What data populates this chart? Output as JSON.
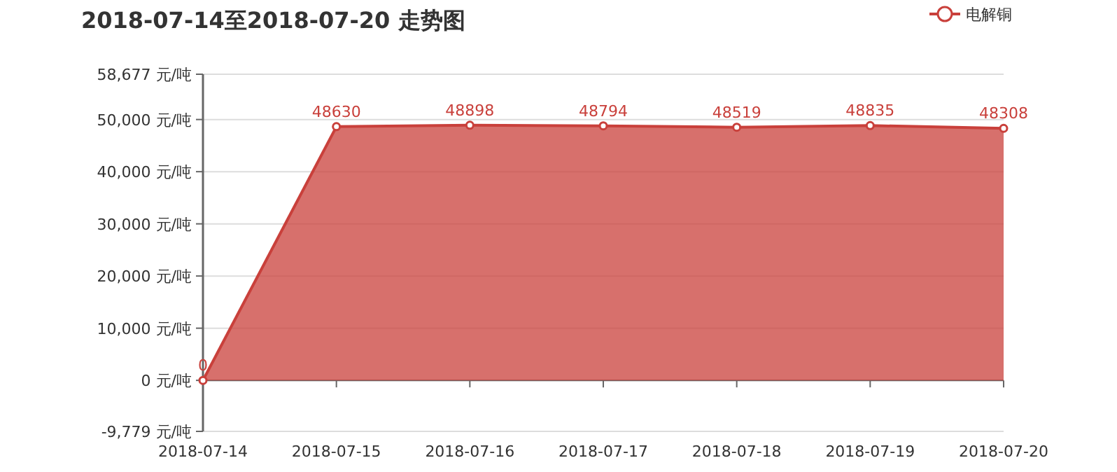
{
  "chart_data": {
    "type": "area",
    "title": "2018-07-14至2018-07-20 走势图",
    "categories": [
      "2018-07-14",
      "2018-07-15",
      "2018-07-16",
      "2018-07-17",
      "2018-07-18",
      "2018-07-19",
      "2018-07-20"
    ],
    "series": [
      {
        "name": "电解铜",
        "color": "#c9403b",
        "values": [
          0,
          48630,
          48898,
          48794,
          48519,
          48835,
          48308
        ]
      }
    ],
    "ylim": [
      -9779,
      58677
    ],
    "yticks": [
      {
        "value": -9779,
        "label": "-9,779 元/吨"
      },
      {
        "value": 0,
        "label": "0 元/吨"
      },
      {
        "value": 10000,
        "label": "10,000 元/吨"
      },
      {
        "value": 20000,
        "label": "20,000 元/吨"
      },
      {
        "value": 30000,
        "label": "30,000 元/吨"
      },
      {
        "value": 40000,
        "label": "40,000 元/吨"
      },
      {
        "value": 50000,
        "label": "50,000 元/吨"
      },
      {
        "value": 58677,
        "label": "58,677 元/吨"
      }
    ],
    "grid": "y",
    "legend": "top right",
    "marker": "circle",
    "data_labels": true
  }
}
